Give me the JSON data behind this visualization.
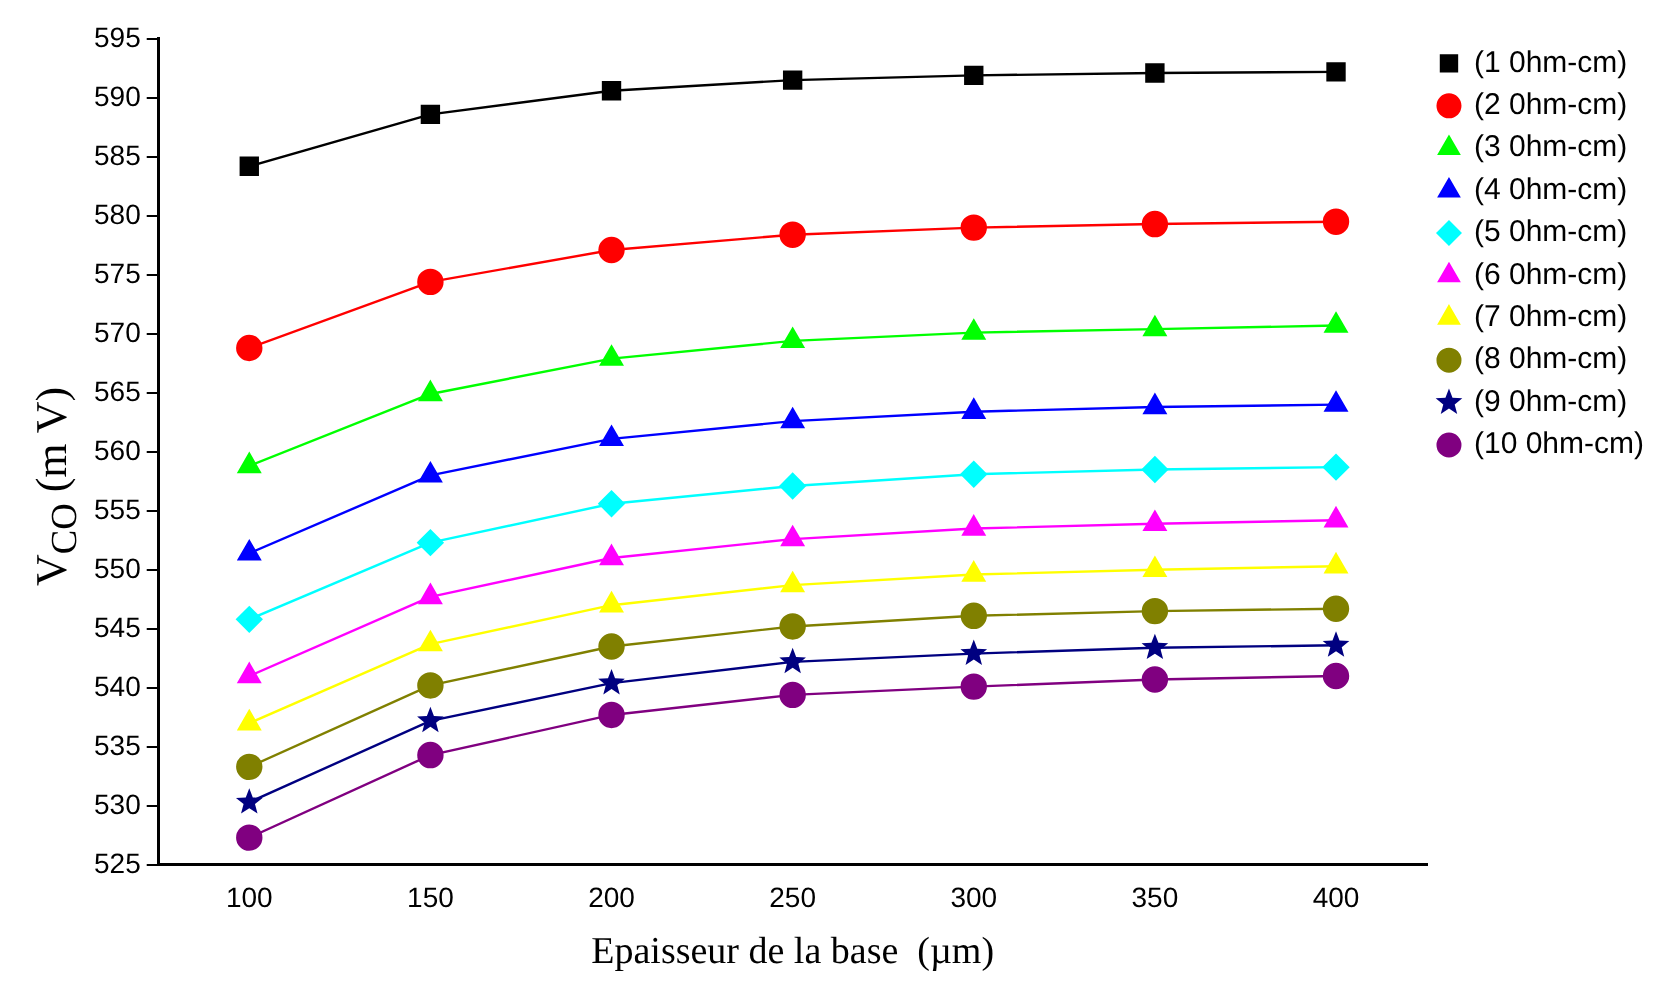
{
  "chart_data": {
    "type": "line",
    "xlabel": "Epaisseur de la base  (µm)",
    "ylabel": "V$_{CO}$ (m V)",
    "x": [
      100,
      150,
      200,
      250,
      300,
      350,
      400
    ],
    "xlim": [
      75,
      425
    ],
    "xticks": [
      100,
      150,
      200,
      250,
      300,
      350,
      400
    ],
    "ylim": [
      525,
      595
    ],
    "yticks": [
      525,
      530,
      535,
      540,
      545,
      550,
      555,
      560,
      565,
      570,
      575,
      580,
      585,
      590,
      595
    ],
    "grid": false,
    "legend": "top right",
    "line_style": "solid",
    "series": [
      {
        "name": "(1 0hm-cm)",
        "color": "#000000",
        "marker": "square",
        "values": [
          584.2,
          588.6,
          590.6,
          591.5,
          591.9,
          592.1,
          592.2
        ]
      },
      {
        "name": "(2 0hm-cm)",
        "color": "#ff0000",
        "marker": "circle",
        "values": [
          568.8,
          574.4,
          577.1,
          578.4,
          579.0,
          579.3,
          579.5
        ]
      },
      {
        "name": "(3 0hm-cm)",
        "color": "#00ff00",
        "marker": "triangle",
        "values": [
          558.8,
          564.9,
          567.9,
          569.4,
          570.1,
          570.4,
          570.7
        ]
      },
      {
        "name": "(4 0hm-cm)",
        "color": "#0000ff",
        "marker": "triangle",
        "values": [
          551.4,
          558.0,
          561.1,
          562.6,
          563.4,
          563.8,
          564.0
        ]
      },
      {
        "name": "(5 0hm-cm)",
        "color": "#00ffff",
        "marker": "diamond",
        "values": [
          545.8,
          552.3,
          555.6,
          557.1,
          558.1,
          558.5,
          558.7
        ]
      },
      {
        "name": "(6 0hm-cm)",
        "color": "#ff00ff",
        "marker": "triangle",
        "values": [
          541.0,
          547.7,
          551.0,
          552.6,
          553.5,
          553.9,
          554.2
        ]
      },
      {
        "name": "(7 0hm-cm)",
        "color": "#ffff00",
        "marker": "triangle",
        "values": [
          537.0,
          543.7,
          547.0,
          548.7,
          549.6,
          550.0,
          550.3
        ]
      },
      {
        "name": "(8 0hm-cm)",
        "color": "#808000",
        "marker": "circle",
        "values": [
          533.3,
          540.2,
          543.5,
          545.2,
          546.1,
          546.5,
          546.7
        ]
      },
      {
        "name": "(9 0hm-cm)",
        "color": "#000080",
        "marker": "star",
        "values": [
          530.3,
          537.2,
          540.4,
          542.2,
          542.9,
          543.4,
          543.6
        ]
      },
      {
        "name": "(10 0hm-cm)",
        "color": "#800080",
        "marker": "circle",
        "values": [
          527.3,
          534.3,
          537.7,
          539.4,
          540.1,
          540.7,
          541.0
        ]
      }
    ]
  }
}
